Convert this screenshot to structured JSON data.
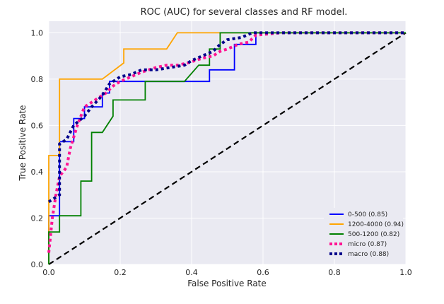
{
  "chart_data": {
    "type": "line",
    "title": "ROC (AUC) for several classes and RF model.",
    "xlabel": "False Positive Rate",
    "ylabel": "True Positive Rate",
    "xlim": [
      0,
      1
    ],
    "ylim": [
      0,
      1.05
    ],
    "xticks": [
      0.0,
      0.2,
      0.4,
      0.6,
      0.8,
      1.0
    ],
    "yticks": [
      0.0,
      0.2,
      0.4,
      0.6,
      0.8,
      1.0
    ],
    "xtick_labels": [
      "0.0",
      "0.2",
      "0.4",
      "0.6",
      "0.8",
      "1.0"
    ],
    "ytick_labels": [
      "0.0",
      "0.2",
      "0.4",
      "0.6",
      "0.8",
      "1.0"
    ],
    "grid": true,
    "legend_position": "bottom-right",
    "series": [
      {
        "name": "0-500 (0.85)",
        "color": "#0000ff",
        "style": "solid",
        "points": [
          [
            0,
            0
          ],
          [
            0,
            0.21
          ],
          [
            0.03,
            0.21
          ],
          [
            0.03,
            0.53
          ],
          [
            0.07,
            0.53
          ],
          [
            0.07,
            0.63
          ],
          [
            0.1,
            0.63
          ],
          [
            0.1,
            0.68
          ],
          [
            0.15,
            0.68
          ],
          [
            0.15,
            0.74
          ],
          [
            0.17,
            0.74
          ],
          [
            0.17,
            0.79
          ],
          [
            0.45,
            0.79
          ],
          [
            0.45,
            0.84
          ],
          [
            0.52,
            0.84
          ],
          [
            0.52,
            0.95
          ],
          [
            0.58,
            0.95
          ],
          [
            0.58,
            1.0
          ],
          [
            1.0,
            1.0
          ]
        ]
      },
      {
        "name": "1200-4000 (0.94)",
        "color": "#ffa500",
        "style": "solid",
        "points": [
          [
            0,
            0
          ],
          [
            0,
            0.47
          ],
          [
            0.03,
            0.47
          ],
          [
            0.03,
            0.8
          ],
          [
            0.15,
            0.8
          ],
          [
            0.21,
            0.87
          ],
          [
            0.21,
            0.93
          ],
          [
            0.33,
            0.93
          ],
          [
            0.36,
            1.0
          ],
          [
            1.0,
            1.0
          ]
        ]
      },
      {
        "name": "500-1200 (0.82)",
        "color": "#008000",
        "style": "solid",
        "points": [
          [
            0,
            0
          ],
          [
            0,
            0.14
          ],
          [
            0.03,
            0.14
          ],
          [
            0.03,
            0.21
          ],
          [
            0.09,
            0.21
          ],
          [
            0.09,
            0.36
          ],
          [
            0.12,
            0.36
          ],
          [
            0.12,
            0.57
          ],
          [
            0.15,
            0.57
          ],
          [
            0.18,
            0.64
          ],
          [
            0.18,
            0.71
          ],
          [
            0.27,
            0.71
          ],
          [
            0.27,
            0.79
          ],
          [
            0.38,
            0.79
          ],
          [
            0.42,
            0.86
          ],
          [
            0.45,
            0.86
          ],
          [
            0.45,
            0.93
          ],
          [
            0.48,
            0.93
          ],
          [
            0.48,
            1.0
          ],
          [
            1.0,
            1.0
          ]
        ]
      },
      {
        "name": "micro (0.87)",
        "color": "#ff1493",
        "style": "dotted",
        "points": [
          [
            0,
            0.05
          ],
          [
            0.01,
            0.2
          ],
          [
            0.02,
            0.3
          ],
          [
            0.03,
            0.38
          ],
          [
            0.05,
            0.42
          ],
          [
            0.06,
            0.5
          ],
          [
            0.07,
            0.55
          ],
          [
            0.08,
            0.6
          ],
          [
            0.09,
            0.64
          ],
          [
            0.1,
            0.68
          ],
          [
            0.12,
            0.7
          ],
          [
            0.14,
            0.72
          ],
          [
            0.16,
            0.74
          ],
          [
            0.18,
            0.77
          ],
          [
            0.2,
            0.79
          ],
          [
            0.23,
            0.81
          ],
          [
            0.26,
            0.83
          ],
          [
            0.3,
            0.85
          ],
          [
            0.33,
            0.86
          ],
          [
            0.36,
            0.86
          ],
          [
            0.39,
            0.87
          ],
          [
            0.41,
            0.88
          ],
          [
            0.43,
            0.89
          ],
          [
            0.46,
            0.9
          ],
          [
            0.48,
            0.92
          ],
          [
            0.5,
            0.93
          ],
          [
            0.53,
            0.95
          ],
          [
            0.56,
            0.96
          ],
          [
            0.58,
            0.99
          ],
          [
            0.65,
            1.0
          ],
          [
            1.0,
            1.0
          ]
        ]
      },
      {
        "name": "macro (0.88)",
        "color": "#00008b",
        "style": "dotted",
        "points": [
          [
            0,
            0.27
          ],
          [
            0.03,
            0.3
          ],
          [
            0.03,
            0.52
          ],
          [
            0.05,
            0.54
          ],
          [
            0.07,
            0.6
          ],
          [
            0.1,
            0.64
          ],
          [
            0.12,
            0.68
          ],
          [
            0.15,
            0.73
          ],
          [
            0.17,
            0.78
          ],
          [
            0.2,
            0.81
          ],
          [
            0.23,
            0.82
          ],
          [
            0.26,
            0.84
          ],
          [
            0.3,
            0.84
          ],
          [
            0.34,
            0.85
          ],
          [
            0.38,
            0.86
          ],
          [
            0.4,
            0.88
          ],
          [
            0.43,
            0.9
          ],
          [
            0.46,
            0.92
          ],
          [
            0.48,
            0.95
          ],
          [
            0.5,
            0.97
          ],
          [
            0.54,
            0.98
          ],
          [
            0.57,
            1.0
          ],
          [
            1.0,
            1.0
          ]
        ]
      }
    ],
    "reference_line": {
      "color": "#000000",
      "style": "dashed",
      "points": [
        [
          0,
          0
        ],
        [
          1,
          1
        ]
      ]
    }
  }
}
